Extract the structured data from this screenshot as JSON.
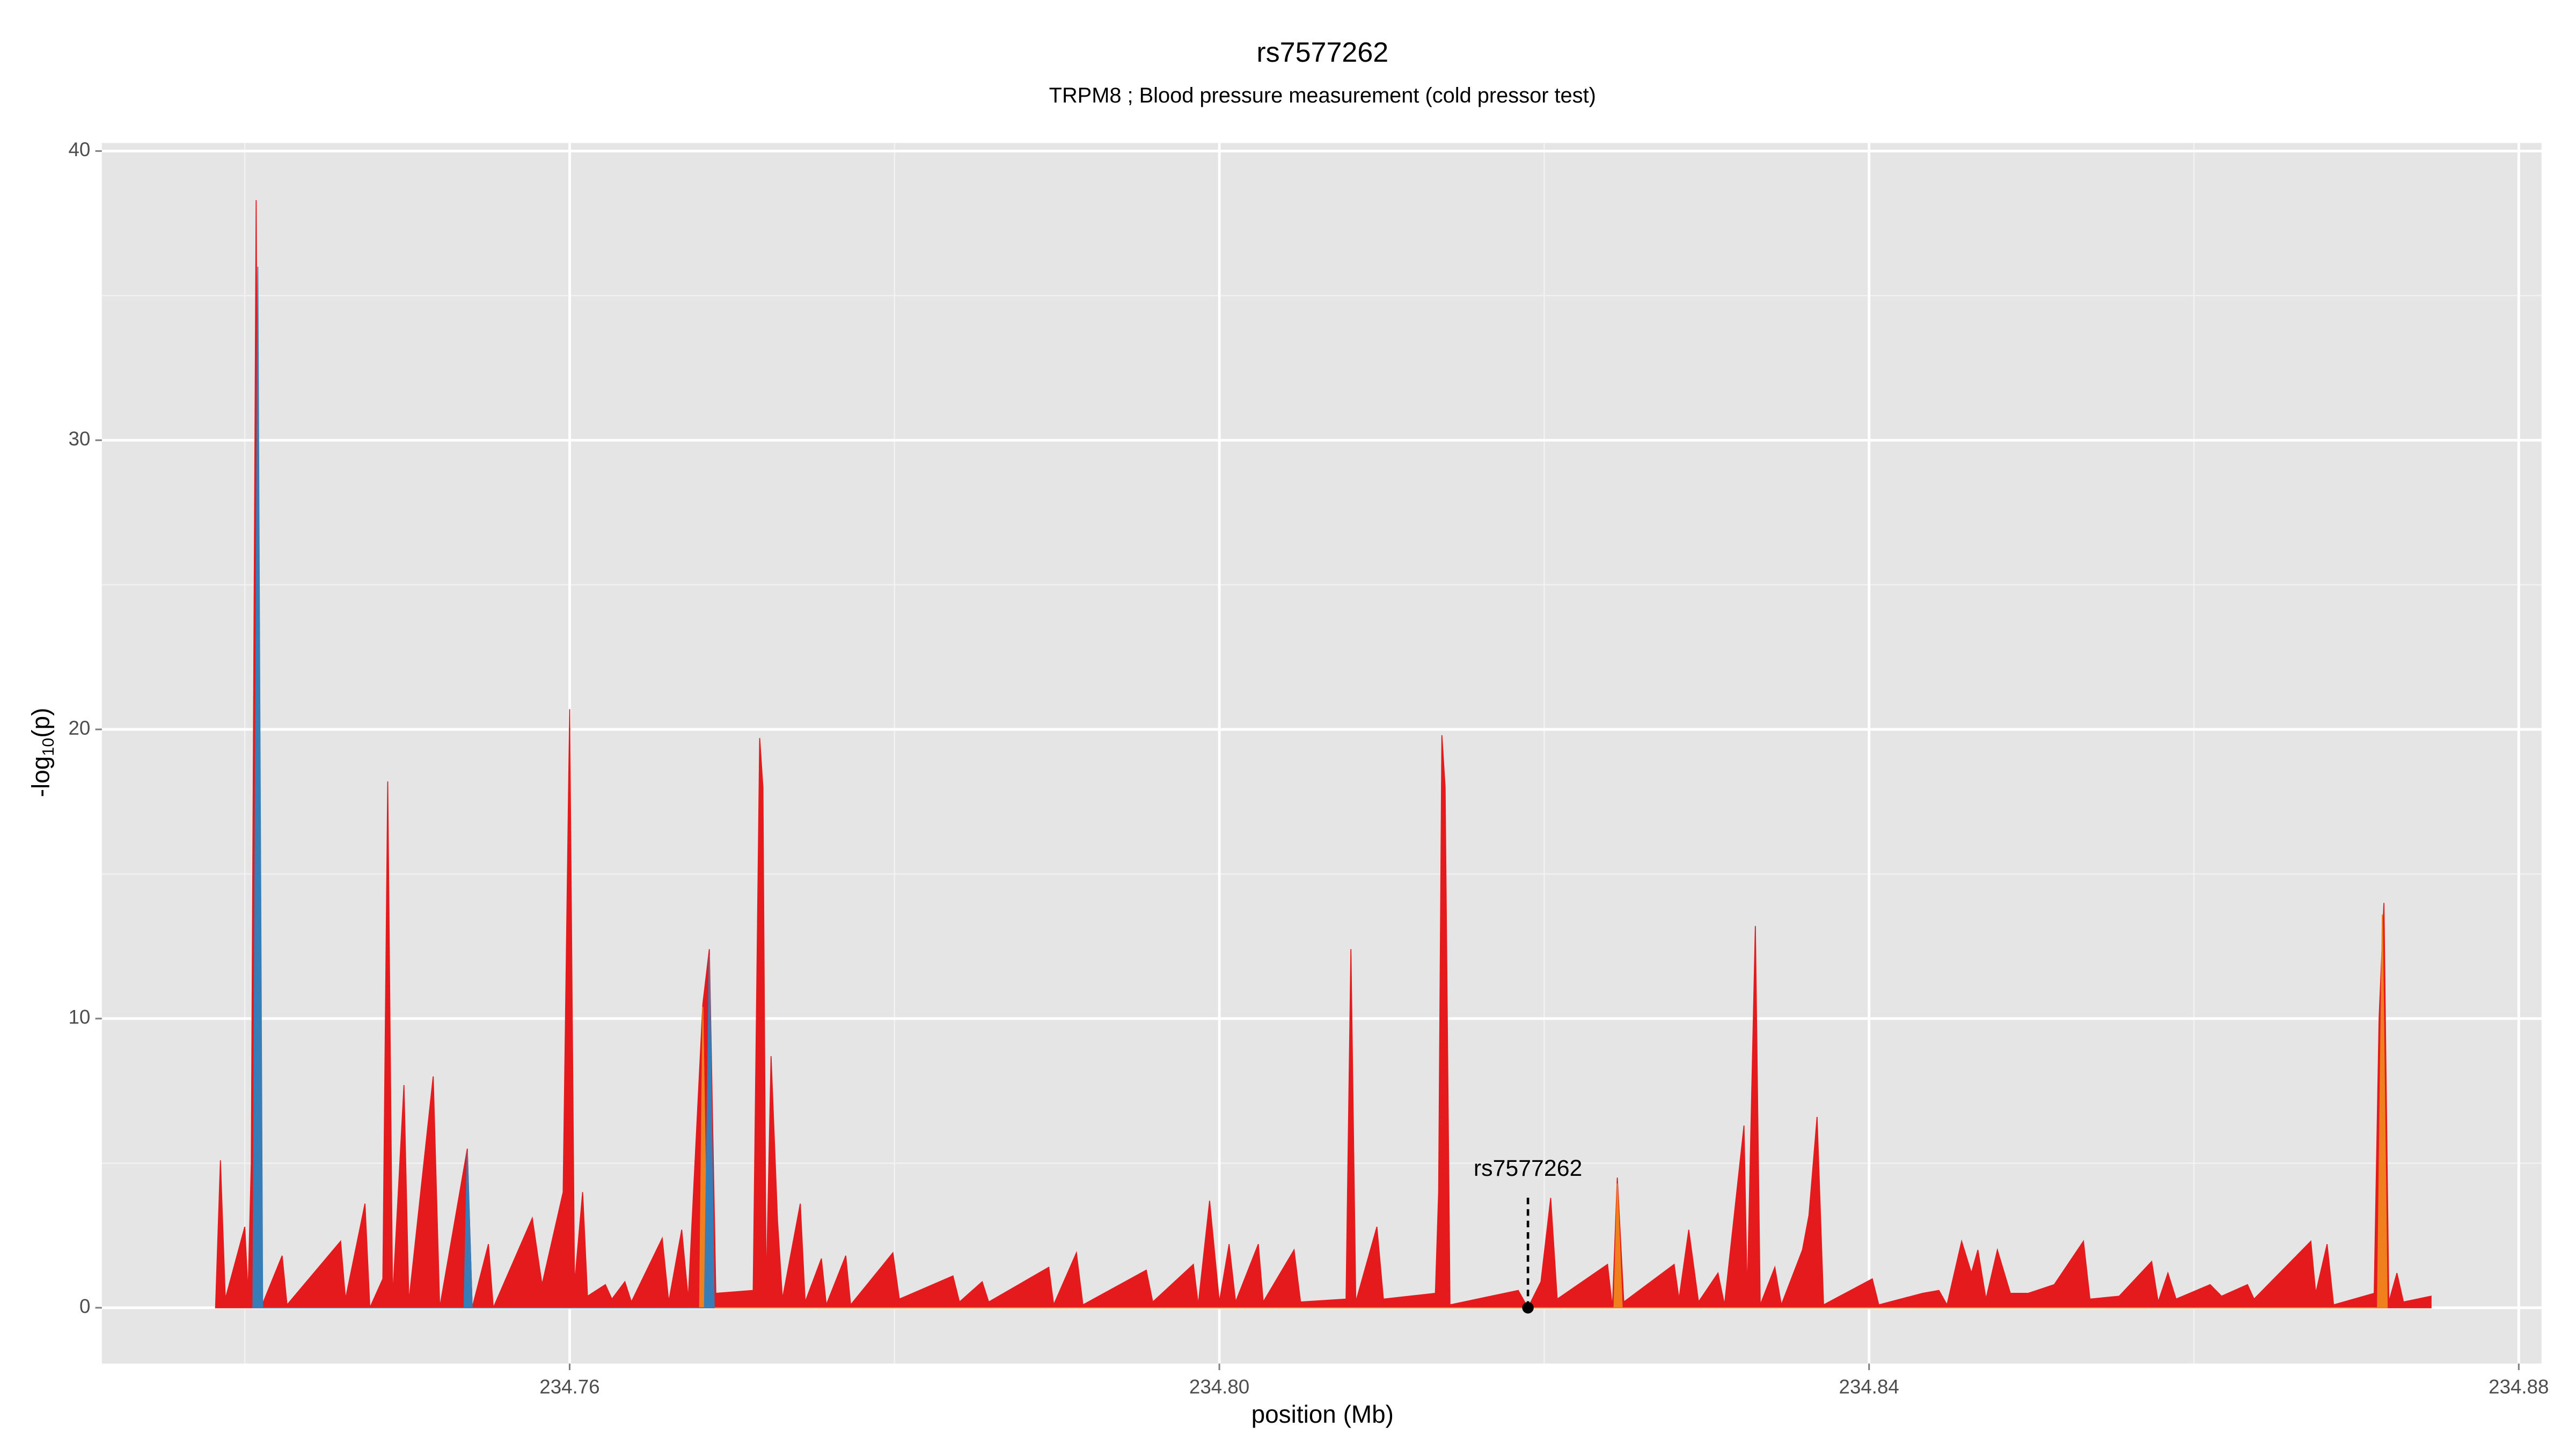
{
  "chart_data": {
    "type": "area",
    "title": "rs7577262",
    "subtitle": "TRPM8 ; Blood pressure measurement (cold pressor test)",
    "xlabel": "position (Mb)",
    "ylabel": {
      "prefix": "-log",
      "subscript": "10",
      "suffix": "(p)"
    },
    "xlim": [
      234.7312,
      234.8814
    ],
    "ylim": [
      -1.93,
      40.28
    ],
    "xticks": [
      234.76,
      {
        "value": 234.8,
        "label": "234.80"
      },
      234.84,
      234.88
    ],
    "yticks": [
      0,
      10,
      20,
      30,
      40
    ],
    "x_minor_grid": [
      234.74,
      234.78,
      234.82,
      234.86
    ],
    "y_minor_grid": [
      5,
      15,
      25,
      35
    ],
    "grid": true,
    "series": [
      {
        "color": "#e41a1c",
        "x": [
          234.7382,
          234.7385,
          234.7388,
          234.74,
          234.7402,
          234.7404,
          234.7407,
          234.741,
          234.7423,
          234.7426,
          234.7459,
          234.7462,
          234.7474,
          234.7477,
          234.7485,
          234.7488,
          234.7491,
          234.7498,
          234.7501,
          234.7516,
          234.752,
          234.7537,
          234.754,
          234.755,
          234.7553,
          234.7577,
          234.7583,
          234.7596,
          234.76,
          234.7603,
          234.7608,
          234.7611,
          234.7622,
          234.7626,
          234.7634,
          234.7638,
          234.7657,
          234.7661,
          234.7669,
          234.7673,
          234.7682,
          234.7686,
          234.769,
          234.7713,
          234.7717,
          234.7719,
          234.7721,
          234.7724,
          234.7728,
          234.7731,
          234.7742,
          234.7745,
          234.7755,
          234.7758,
          234.777,
          234.7773,
          234.7799,
          234.7803,
          234.7836,
          234.784,
          234.7854,
          234.7858,
          234.7895,
          234.7898,
          234.7912,
          234.7916,
          234.7955,
          234.7959,
          234.7984,
          234.7987,
          234.7994,
          234.8,
          234.8006,
          234.801,
          234.8024,
          234.8027,
          234.8046,
          234.805,
          234.8078,
          234.8081,
          234.8084,
          234.8097,
          234.8101,
          234.8133,
          234.8135,
          234.8137,
          234.8139,
          234.8142,
          234.8184,
          234.819,
          234.8198,
          234.8204,
          234.8208,
          234.8239,
          234.8242,
          234.8245,
          234.8249,
          234.828,
          234.8283,
          234.8289,
          234.8295,
          234.8307,
          234.8311,
          234.8323,
          234.8325,
          234.833,
          234.8333,
          234.8342,
          234.8346,
          234.8359,
          234.8363,
          234.8368,
          234.8372,
          234.8402,
          234.8406,
          234.8433,
          234.8443,
          234.8448,
          234.8457,
          234.8463,
          234.8467,
          234.8472,
          234.8479,
          234.8487,
          234.8498,
          234.8514,
          234.8532,
          234.8536,
          234.8554,
          234.8574,
          234.8578,
          234.8584,
          234.8589,
          234.861,
          234.8617,
          234.8633,
          234.8637,
          234.8672,
          234.8675,
          234.8682,
          234.8686,
          234.8711,
          234.8714,
          234.8717,
          234.872,
          234.8725,
          234.8729,
          234.8746
        ],
        "values": [
          0,
          5.1,
          0.3,
          2.8,
          0.5,
          5,
          38.3,
          0,
          1.8,
          0.1,
          2.3,
          0.3,
          3.6,
          0,
          1,
          18.2,
          0.3,
          7.7,
          0.2,
          8,
          0,
          5.5,
          0,
          2.2,
          0,
          3.1,
          0.8,
          4,
          20.7,
          0.8,
          4,
          0.4,
          0.8,
          0.3,
          0.9,
          0.2,
          2.4,
          0.2,
          2.7,
          0.3,
          10.5,
          12.4,
          0.5,
          0.6,
          19.7,
          18,
          0.5,
          8.7,
          3,
          0.3,
          3.6,
          0.2,
          1.7,
          0.1,
          1.8,
          0.1,
          1.9,
          0.3,
          1.1,
          0.2,
          0.9,
          0.2,
          1.4,
          0.1,
          1.9,
          0.1,
          1.3,
          0.2,
          1.5,
          0.1,
          3.7,
          0.2,
          2.2,
          0.2,
          2.2,
          0.2,
          2,
          0.2,
          0.3,
          12.4,
          0.2,
          2.8,
          0.3,
          0.5,
          4,
          19.8,
          18,
          0.1,
          0.6,
          0,
          0.9,
          3.8,
          0.3,
          1.5,
          0,
          4.5,
          0.2,
          1.5,
          0.3,
          2.7,
          0.2,
          1.2,
          0.1,
          6.3,
          0.4,
          13.2,
          0.1,
          1.4,
          0.1,
          2,
          3.2,
          6.6,
          0.1,
          1,
          0.1,
          0.5,
          0.6,
          0.1,
          2.3,
          1.2,
          2,
          0.3,
          2,
          0.5,
          0.5,
          0.8,
          2.3,
          0.3,
          0.4,
          1.6,
          0.2,
          1.2,
          0.3,
          0.8,
          0.4,
          0.8,
          0.3,
          2.3,
          0.5,
          2.2,
          0.1,
          0.5,
          10,
          14,
          0.2,
          1.2,
          0.2,
          0.4
        ]
      },
      {
        "color": "#f07f1e",
        "x": [
          234.768,
          234.7682,
          234.7685,
          234.8243,
          234.8245,
          234.8248,
          234.8713,
          234.8716,
          234.8719
        ],
        "values": [
          0,
          10.4,
          0,
          0,
          4.3,
          0,
          0,
          13.6,
          0
        ]
      },
      {
        "color": "#377eb8",
        "x": [
          234.7405,
          234.7408,
          234.7411,
          234.7535,
          234.7537,
          234.754,
          234.7683,
          234.7686,
          234.7689
        ],
        "values": [
          0,
          36,
          0,
          0,
          5.4,
          0,
          0,
          12.2,
          0
        ]
      }
    ],
    "annotation": {
      "label": "rs7577262",
      "x": 234.819,
      "y": 0
    }
  }
}
